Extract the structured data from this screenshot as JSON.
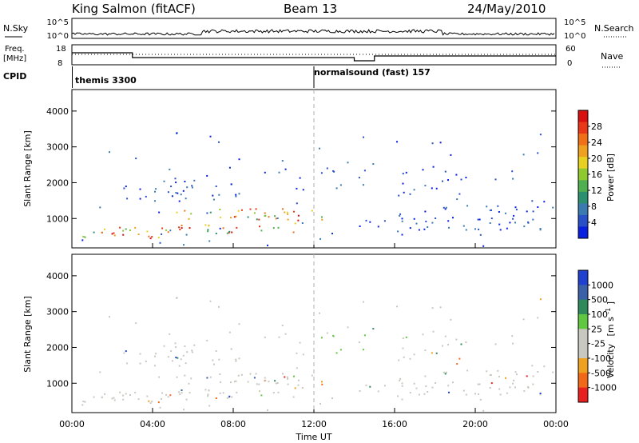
{
  "header": {
    "station": "King Salmon (fitACF)",
    "beam": "Beam 13",
    "date": "24/May/2010"
  },
  "strips": {
    "nsky_label": "N.Sky",
    "nsearch_label": "N.Search",
    "nsky_ticks": [
      "10^5",
      "10^0"
    ],
    "nsky_right_ticks": [
      "10^5",
      "10^0"
    ],
    "freq_label_1": "Freq.",
    "freq_label_2": "[MHz]",
    "freq_ticks": [
      "18",
      "8"
    ],
    "nave_label": "Nave",
    "nave_ticks": [
      "60",
      "0"
    ],
    "cpid_label": "CPID",
    "cpid_segments": [
      {
        "label": "themis 3300",
        "start_hour": 0
      },
      {
        "label": "normalsound (fast) 157",
        "start_hour": 12
      }
    ]
  },
  "chart_data": [
    {
      "type": "heatmap",
      "title": "",
      "xlabel": "",
      "ylabel": "Slant Range [km]",
      "xlim": [
        0,
        24
      ],
      "ylim": [
        180,
        4600
      ],
      "yticks": [
        1000,
        2000,
        3000,
        4000
      ],
      "colorbar_label": "Power [dB]",
      "colorbar_ticks": [
        "4",
        "8",
        "12",
        "16",
        "20",
        "24",
        "28"
      ],
      "colorbar_colors": [
        "#0a20e0",
        "#2a50c8",
        "#3a7ab0",
        "#2a9070",
        "#50b050",
        "#90c830",
        "#e8d020",
        "#f0a020",
        "#f07018",
        "#e83818",
        "#d81010"
      ]
    },
    {
      "type": "heatmap",
      "title": "",
      "xlabel": "Time UT",
      "ylabel": "Slant Range [km]",
      "xlim": [
        0,
        24
      ],
      "ylim": [
        180,
        4600
      ],
      "yticks": [
        1000,
        2000,
        3000,
        4000
      ],
      "xtick_labels": [
        "00:00",
        "04:00",
        "08:00",
        "12:00",
        "16:00",
        "20:00",
        "00:00"
      ],
      "colorbar_label": "Velocity",
      "colorbar_unit": "[m s",
      "colorbar_unit_sup": "-1",
      "colorbar_unit_end": "]",
      "colorbar_ticks": [
        "1000",
        "500",
        "100",
        "25",
        "-25",
        "-100",
        "-500",
        "-1000"
      ],
      "colorbar_colors": [
        "#2040d0",
        "#3a60a8",
        "#2e8a5a",
        "#60c840",
        "#c8c8c0",
        "#c8c8c0",
        "#f0a020",
        "#f06818",
        "#e82020"
      ]
    }
  ]
}
